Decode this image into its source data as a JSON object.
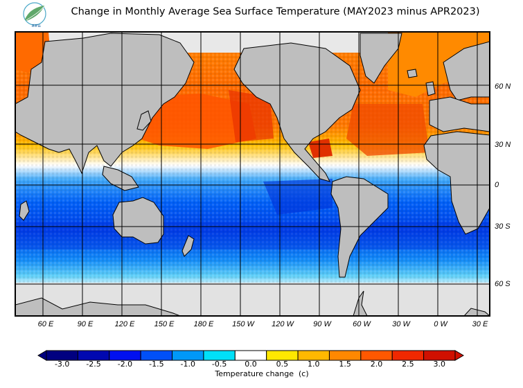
{
  "header": {
    "title": "Change in Monthly Average Sea Surface Temperature (MAY2023 minus APR2023)",
    "logo_text": "สสน"
  },
  "map": {
    "projection": "equirectangular",
    "lon_labels": [
      "60 E",
      "90 E",
      "120 E",
      "150 E",
      "180 E",
      "150 W",
      "120 W",
      "90 W",
      "60 W",
      "30 W",
      "0 W",
      "30 E"
    ],
    "lat_labels": [
      "60 N",
      "30 N",
      "0",
      "30 S",
      "60 S"
    ],
    "colors": {
      "land": "#bebebe",
      "no_data": "#e2e2e2",
      "border": "#000000",
      "grid": "#000000"
    }
  },
  "colorbar": {
    "title": "Temperature change  (c)",
    "tick_labels": [
      "-3.0",
      "-2.5",
      "-2.0",
      "-1.5",
      "-1.0",
      "-0.5",
      "0.0",
      "0.5",
      "1.0",
      "1.5",
      "2.0",
      "2.5",
      "3.0"
    ],
    "colors": [
      "#000080",
      "#0008b0",
      "#0010f0",
      "#0050f8",
      "#0098f8",
      "#00e0f8",
      "#ffffff",
      "#ffe800",
      "#ffb800",
      "#ff8800",
      "#ff5800",
      "#f02800",
      "#d01000"
    ],
    "under_color": "#000080",
    "over_color": "#d01000"
  }
}
